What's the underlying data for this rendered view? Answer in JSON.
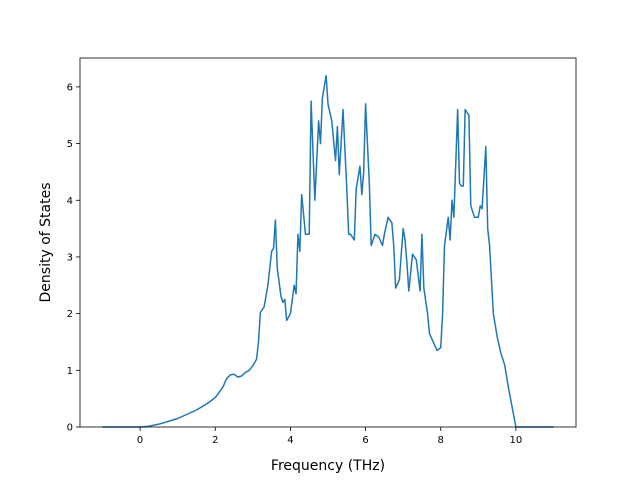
{
  "chart_data": {
    "type": "line",
    "xlabel": "Frequency (THz)",
    "ylabel": "Density of States",
    "x": [
      -1,
      0,
      0.2,
      0.5,
      1.0,
      1.5,
      1.8,
      2.0,
      2.2,
      2.3,
      2.4,
      2.5,
      2.6,
      2.7,
      2.8,
      2.9,
      3.0,
      3.1,
      3.15,
      3.2,
      3.3,
      3.4,
      3.5,
      3.55,
      3.6,
      3.65,
      3.75,
      3.8,
      3.85,
      3.9,
      4.0,
      4.1,
      4.15,
      4.2,
      4.25,
      4.3,
      4.4,
      4.5,
      4.55,
      4.65,
      4.75,
      4.8,
      4.85,
      4.95,
      5.0,
      5.1,
      5.2,
      5.25,
      5.3,
      5.4,
      5.5,
      5.55,
      5.6,
      5.7,
      5.75,
      5.85,
      5.9,
      5.95,
      6.0,
      6.1,
      6.15,
      6.25,
      6.35,
      6.45,
      6.5,
      6.6,
      6.7,
      6.75,
      6.8,
      6.9,
      7.0,
      7.05,
      7.1,
      7.15,
      7.25,
      7.3,
      7.35,
      7.45,
      7.5,
      7.55,
      7.65,
      7.7,
      7.8,
      7.9,
      8.0,
      8.05,
      8.1,
      8.2,
      8.25,
      8.3,
      8.35,
      8.45,
      8.5,
      8.55,
      8.6,
      8.65,
      8.75,
      8.8,
      8.9,
      9.0,
      9.05,
      9.1,
      9.2,
      9.25,
      9.3,
      9.4,
      9.5,
      9.6,
      9.7,
      9.8,
      9.9,
      10.0,
      10.5,
      11
    ],
    "values": [
      0,
      0,
      0.01,
      0.05,
      0.15,
      0.3,
      0.42,
      0.52,
      0.7,
      0.85,
      0.92,
      0.93,
      0.88,
      0.9,
      0.96,
      1.0,
      1.08,
      1.2,
      1.5,
      2.02,
      2.12,
      2.5,
      3.1,
      3.15,
      3.65,
      2.8,
      2.3,
      2.2,
      2.25,
      1.88,
      2.0,
      2.5,
      2.35,
      3.4,
      3.1,
      4.1,
      3.4,
      3.4,
      5.75,
      4.0,
      5.4,
      5.0,
      5.8,
      6.2,
      5.7,
      5.4,
      4.7,
      5.3,
      4.45,
      5.6,
      4.2,
      3.4,
      3.4,
      3.3,
      4.2,
      4.6,
      4.1,
      4.5,
      5.7,
      4.3,
      3.2,
      3.4,
      3.35,
      3.2,
      3.4,
      3.7,
      3.6,
      3.2,
      2.45,
      2.6,
      3.5,
      3.3,
      2.9,
      2.4,
      3.05,
      3.0,
      2.95,
      2.4,
      3.4,
      2.45,
      2.0,
      1.65,
      1.5,
      1.35,
      1.4,
      2.0,
      3.2,
      3.7,
      3.3,
      4.0,
      3.7,
      5.6,
      4.3,
      4.25,
      4.25,
      5.6,
      5.5,
      3.9,
      3.7,
      3.7,
      3.9,
      3.85,
      4.95,
      3.5,
      3.2,
      2.0,
      1.6,
      1.3,
      1.1,
      0.7,
      0.35,
      0.0,
      0,
      0
    ],
    "color": "#1f77b4",
    "xlim": [
      -1.6,
      11.6
    ],
    "ylim": [
      0,
      6.51
    ],
    "xticks": [
      0,
      2,
      4,
      6,
      8,
      10
    ],
    "yticks": [
      0,
      1,
      2,
      3,
      4,
      5,
      6
    ]
  }
}
